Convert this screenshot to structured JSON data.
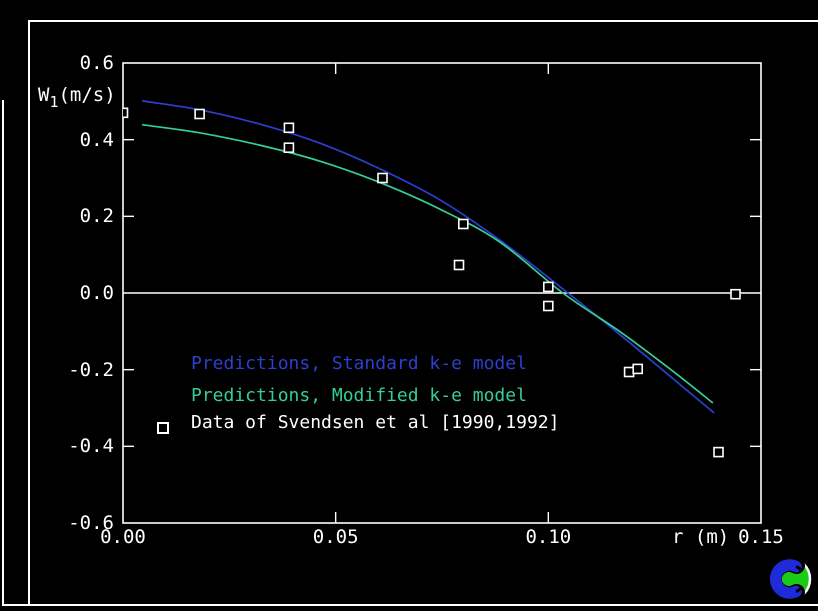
{
  "window": {
    "background": "#000000",
    "border_color": "#ffffff"
  },
  "chart_data": {
    "type": "line",
    "title": "",
    "xlabel": "r (m)",
    "ylabel_parts": {
      "prefix": "W",
      "sub": "1",
      "suffix": "(m/s)"
    },
    "xlim": [
      0,
      0.15
    ],
    "ylim": [
      -0.6,
      0.6
    ],
    "grid": false,
    "zero_line": true,
    "x_ticks": {
      "values": [
        0,
        0.05,
        0.1,
        0.15
      ],
      "labels": [
        "0.00",
        "0.05",
        "0.10",
        "0.15"
      ]
    },
    "y_ticks": {
      "values": [
        0.6,
        0.4,
        0.2,
        0.0,
        -0.2,
        -0.4,
        -0.6
      ],
      "labels": [
        "0.6",
        "0.4",
        "0.2",
        "0.0",
        "-0.2",
        "-0.4",
        "-0.6"
      ]
    },
    "legend_position": "inside-lower-left",
    "series": [
      {
        "name": "Predictions, Standard k-e model",
        "type": "line",
        "color": "#2c3fd0",
        "points": [
          [
            0.0045,
            0.501
          ],
          [
            0.018,
            0.478
          ],
          [
            0.032,
            0.441
          ],
          [
            0.046,
            0.392
          ],
          [
            0.06,
            0.326
          ],
          [
            0.0745,
            0.243
          ],
          [
            0.0886,
            0.138
          ],
          [
            0.1046,
            0.0
          ],
          [
            0.117,
            -0.11
          ],
          [
            0.1286,
            -0.217
          ],
          [
            0.139,
            -0.313
          ]
        ]
      },
      {
        "name": "Predictions, Modified k-e model",
        "type": "line",
        "color": "#35cf95",
        "points": [
          [
            0.0045,
            0.439
          ],
          [
            0.018,
            0.418
          ],
          [
            0.032,
            0.386
          ],
          [
            0.046,
            0.345
          ],
          [
            0.06,
            0.29
          ],
          [
            0.0745,
            0.219
          ],
          [
            0.0886,
            0.133
          ],
          [
            0.1034,
            0.0
          ],
          [
            0.117,
            -0.102
          ],
          [
            0.1286,
            -0.198
          ],
          [
            0.1387,
            -0.287
          ]
        ]
      },
      {
        "name": "Data of Svendsen et al [1990,1992]",
        "type": "scatter",
        "marker": "open-square",
        "color": "#ffffff",
        "points": [
          [
            0.0,
            0.47
          ],
          [
            0.018,
            0.467
          ],
          [
            0.039,
            0.431
          ],
          [
            0.039,
            0.379
          ],
          [
            0.061,
            0.3
          ],
          [
            0.08,
            0.18
          ],
          [
            0.079,
            0.073
          ],
          [
            0.1,
            0.016
          ],
          [
            0.1,
            -0.034
          ],
          [
            0.119,
            -0.206
          ],
          [
            0.121,
            -0.198
          ],
          [
            0.14,
            -0.415
          ],
          [
            0.144,
            -0.003
          ]
        ]
      }
    ]
  },
  "logo": {
    "name": "swirl-logo",
    "colors": {
      "blue": "#1f2bd8",
      "green": "#18cc18",
      "outline": "#ffffff",
      "gap": "#000000"
    }
  }
}
